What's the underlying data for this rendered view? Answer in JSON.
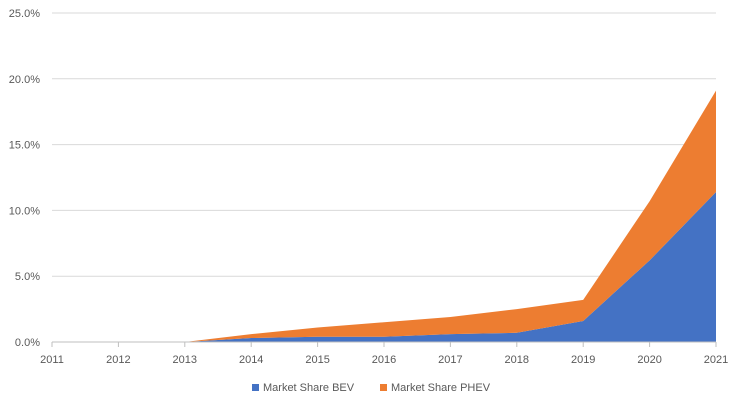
{
  "chart_data": {
    "type": "area",
    "stacked": true,
    "x": [
      "2011",
      "2012",
      "2013",
      "2014",
      "2015",
      "2016",
      "2017",
      "2018",
      "2019",
      "2020",
      "2021"
    ],
    "series": [
      {
        "name": "Market Share BEV",
        "color": "#4472C4",
        "values": [
          0.0,
          0.0,
          0.0,
          0.3,
          0.4,
          0.4,
          0.6,
          0.7,
          1.6,
          6.2,
          11.4
        ]
      },
      {
        "name": "Market Share PHEV",
        "color": "#ED7D31",
        "values": [
          0.0,
          0.0,
          0.0,
          0.3,
          0.7,
          1.1,
          1.3,
          1.8,
          1.6,
          4.5,
          7.7
        ]
      }
    ],
    "yticks": [
      "0.0%",
      "5.0%",
      "10.0%",
      "15.0%",
      "20.0%",
      "25.0%"
    ],
    "ylim": [
      0,
      25
    ],
    "y_unit": "percent",
    "grid": true,
    "legend_position": "bottom",
    "title": "",
    "xlabel": "",
    "ylabel": ""
  }
}
